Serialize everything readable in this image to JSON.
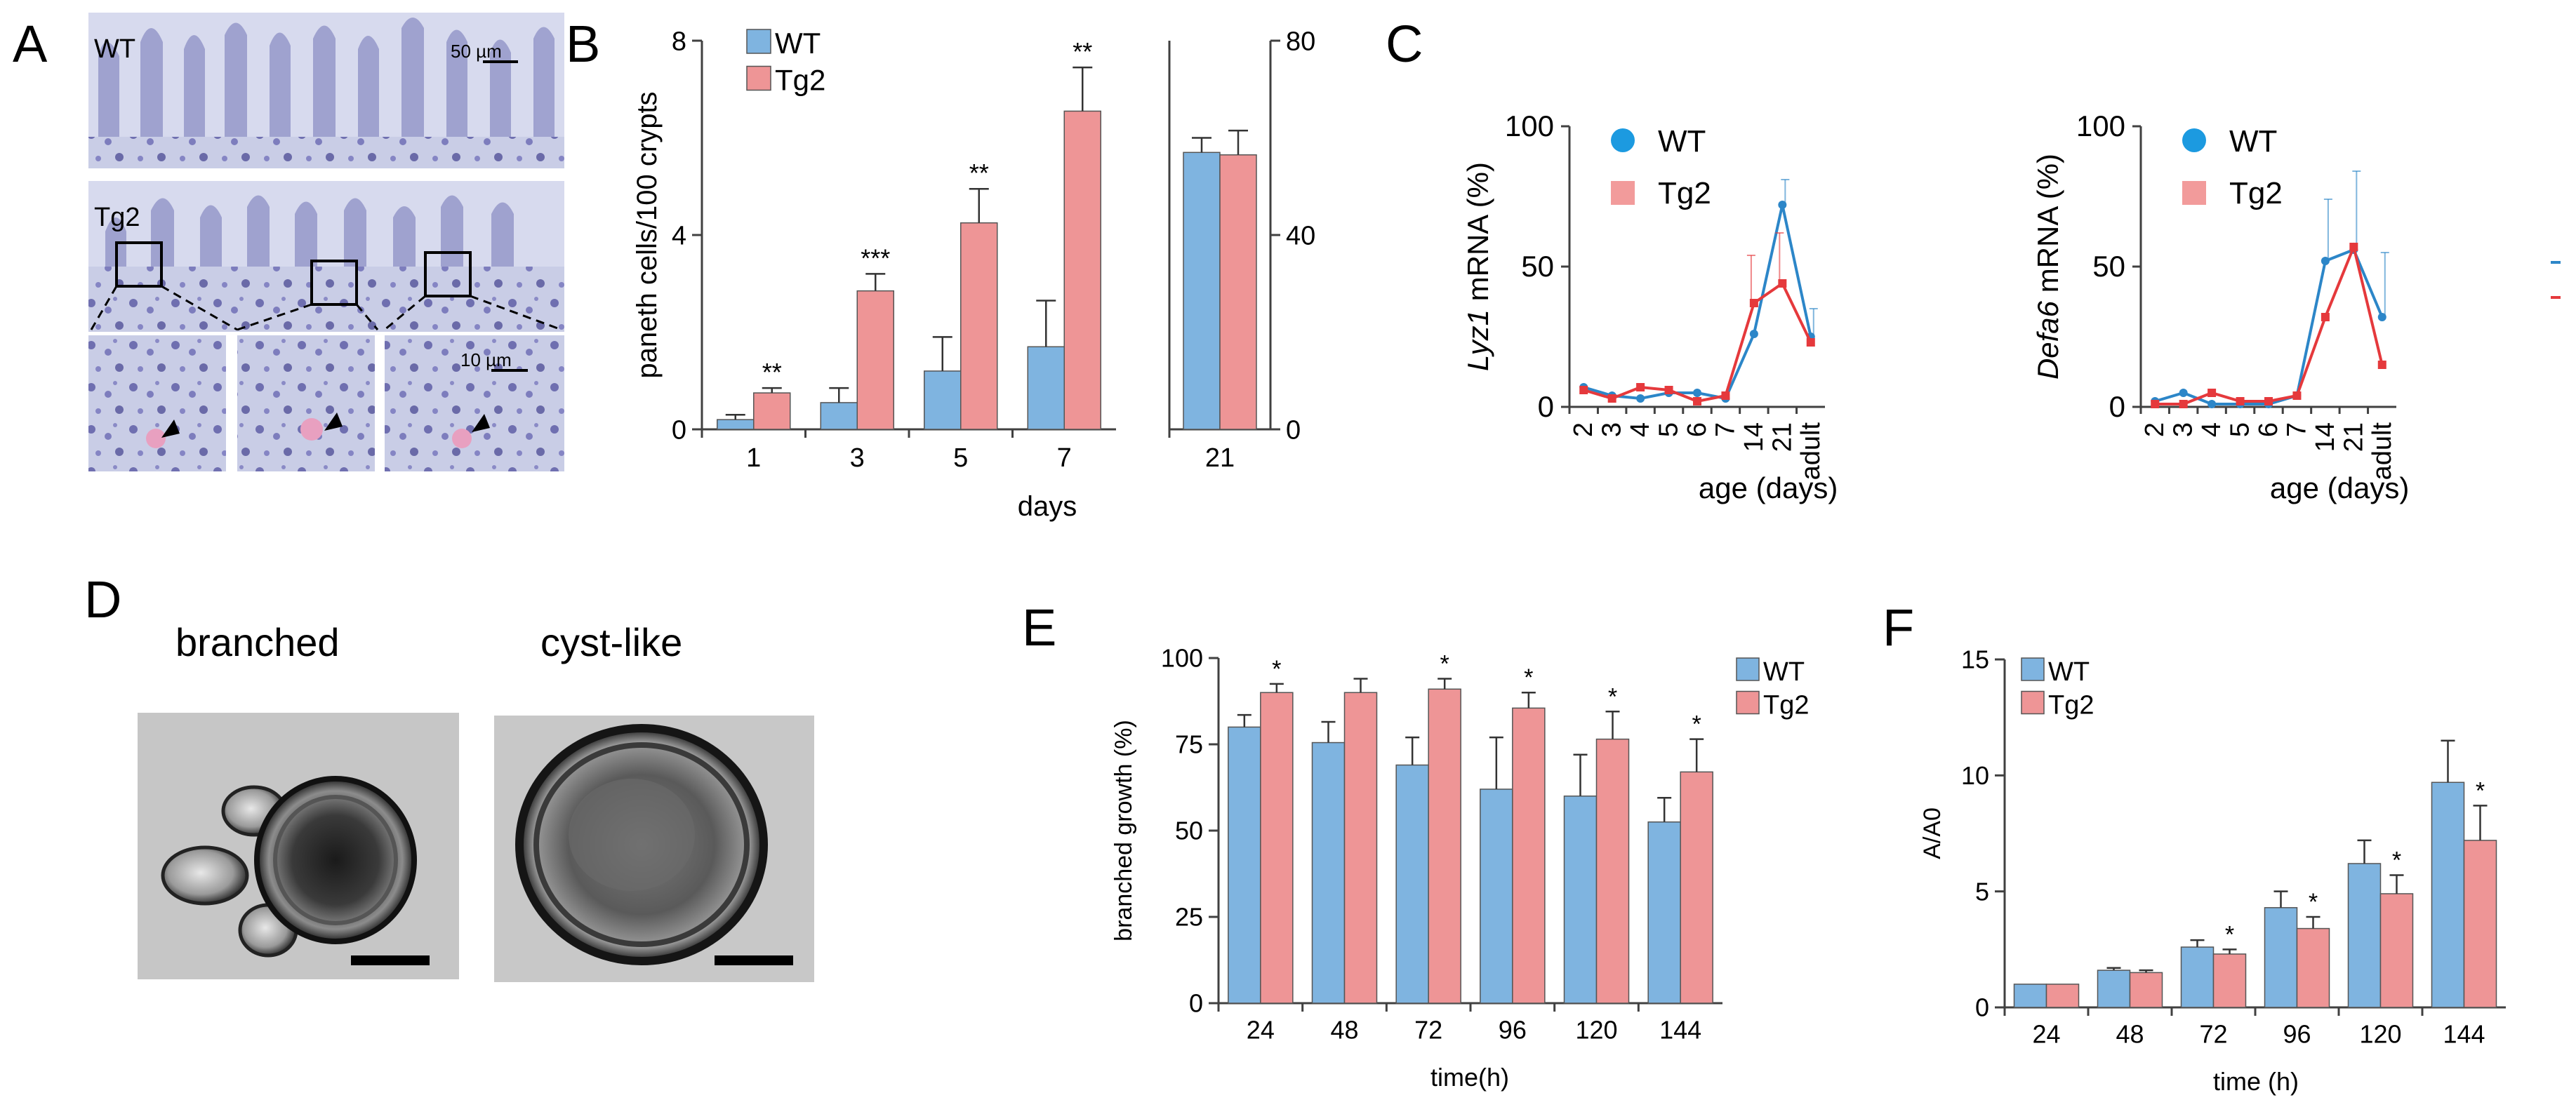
{
  "panel_letters": {
    "a": "A",
    "b": "B",
    "c": "C",
    "d": "D",
    "e": "E",
    "f": "F"
  },
  "colors": {
    "wt": "#7fb4e0",
    "tg2": "#ee9596",
    "wt_line": "#2c86c8",
    "tg2_line": "#e5393c",
    "axis": "#404040"
  },
  "panel_a": {
    "wt_label": "WT",
    "tg2_label": "Tg2",
    "scale_top": "50 µm",
    "scale_bottom": "10 µm"
  },
  "panel_d": {
    "branched_label": "branched",
    "cyst_label": "cyst-like"
  },
  "chart_data": [
    {
      "id": "B",
      "type": "bar",
      "ylabel": "paneth cells/100 crypts",
      "xlabel": "days",
      "legend": [
        "WT",
        "Tg2"
      ],
      "left": {
        "categories": [
          "1",
          "3",
          "5",
          "7"
        ],
        "ylim": [
          0,
          8
        ],
        "yticks": [
          "0",
          "4",
          "8"
        ],
        "series": [
          {
            "name": "WT",
            "values": [
              0.2,
              0.55,
              1.2,
              1.7
            ],
            "errors": [
              0.1,
              0.3,
              0.7,
              0.95
            ]
          },
          {
            "name": "Tg2",
            "values": [
              0.75,
              2.85,
              4.25,
              6.55
            ],
            "errors": [
              0.1,
              0.35,
              0.7,
              0.9
            ]
          }
        ],
        "significance": [
          "**",
          "***",
          "**",
          "**"
        ]
      },
      "right": {
        "categories": [
          "21"
        ],
        "ylim": [
          0,
          80
        ],
        "yticks": [
          "0",
          "40",
          "80"
        ],
        "series": [
          {
            "name": "WT",
            "values": [
              57
            ],
            "errors": [
              3
            ]
          },
          {
            "name": "Tg2",
            "values": [
              56.5
            ],
            "errors": [
              5
            ]
          }
        ]
      }
    },
    {
      "id": "C1",
      "type": "line",
      "ylabel_gene": "Lyz1",
      "ylabel_rest": " mRNA (%)",
      "xlabel": "age (days)",
      "categories": [
        "2",
        "3",
        "4",
        "5",
        "6",
        "7",
        "14",
        "21",
        "adult"
      ],
      "ylim": [
        0,
        100
      ],
      "yticks": [
        "0",
        "50",
        "100"
      ],
      "series": [
        {
          "name": "WT",
          "values": [
            7,
            4,
            3,
            5,
            5,
            3,
            26,
            72,
            25
          ],
          "errors": [
            0,
            0,
            0,
            0,
            0,
            0,
            0,
            9,
            10
          ]
        },
        {
          "name": "Tg2",
          "values": [
            6,
            3,
            7,
            6,
            2,
            4,
            37,
            44,
            23
          ],
          "errors": [
            0,
            0,
            0,
            0,
            0,
            0,
            17,
            18,
            0
          ]
        }
      ]
    },
    {
      "id": "C2",
      "type": "line",
      "ylabel_gene": "Defa6",
      "ylabel_rest": " mRNA (%)",
      "xlabel": "age (days)",
      "categories": [
        "2",
        "3",
        "4",
        "5",
        "6",
        "7",
        "14",
        "21",
        "adult"
      ],
      "ylim": [
        0,
        100
      ],
      "yticks": [
        "0",
        "50",
        "100"
      ],
      "series": [
        {
          "name": "WT",
          "values": [
            2,
            5,
            1,
            1,
            1,
            4,
            52,
            56,
            32
          ],
          "errors": [
            0,
            0,
            0,
            0,
            0,
            0,
            22,
            28,
            23
          ]
        },
        {
          "name": "Tg2",
          "values": [
            1,
            1,
            5,
            2,
            2,
            4,
            32,
            57,
            15
          ],
          "errors": [
            0,
            0,
            0,
            0,
            0,
            0,
            0,
            0,
            0
          ]
        }
      ]
    },
    {
      "id": "E",
      "type": "bar",
      "ylabel": "branched growth (%)",
      "xlabel": "time(h)",
      "categories": [
        "24",
        "48",
        "72",
        "96",
        "120",
        "144"
      ],
      "ylim": [
        0,
        100
      ],
      "yticks": [
        "0",
        "25",
        "50",
        "75",
        "100"
      ],
      "series": [
        {
          "name": "WT",
          "values": [
            80,
            75.5,
            69,
            62,
            60,
            52.5
          ],
          "errors": [
            3.5,
            6,
            8,
            15,
            12,
            7
          ]
        },
        {
          "name": "Tg2",
          "values": [
            90,
            90,
            91,
            85.5,
            76.5,
            67
          ],
          "errors": [
            2.5,
            4,
            3,
            4.5,
            8,
            9.5
          ]
        }
      ],
      "significance": [
        "*",
        "",
        "*",
        "*",
        "*",
        "*"
      ]
    },
    {
      "id": "F",
      "type": "bar",
      "ylabel": "A/A0",
      "xlabel": "time (h)",
      "categories": [
        "24",
        "48",
        "72",
        "96",
        "120",
        "144"
      ],
      "ylim": [
        0,
        15
      ],
      "yticks": [
        "0",
        "5",
        "10",
        "15"
      ],
      "series": [
        {
          "name": "WT",
          "values": [
            1,
            1.6,
            2.6,
            4.3,
            6.2,
            9.7
          ],
          "errors": [
            0,
            0.1,
            0.3,
            0.7,
            1.0,
            1.8
          ]
        },
        {
          "name": "Tg2",
          "values": [
            1,
            1.5,
            2.3,
            3.4,
            4.9,
            7.2
          ],
          "errors": [
            0,
            0.1,
            0.2,
            0.5,
            0.8,
            1.5
          ]
        }
      ],
      "significance": [
        "",
        "",
        "*",
        "*",
        "*",
        "*"
      ]
    }
  ]
}
